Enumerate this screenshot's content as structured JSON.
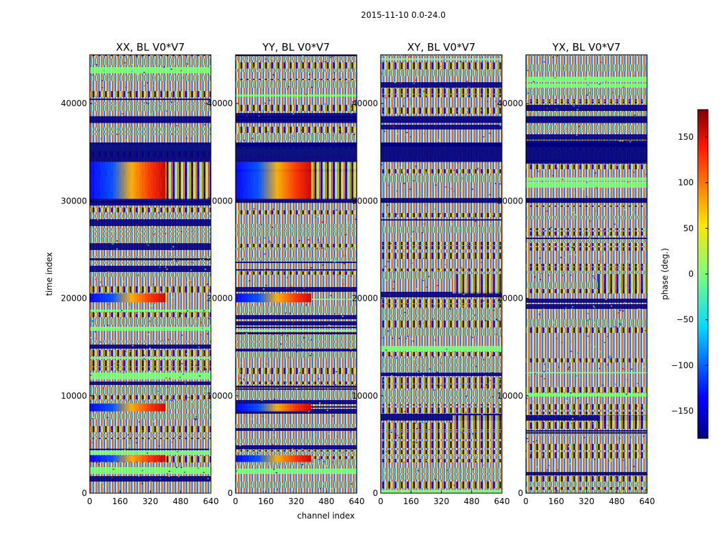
{
  "figure": {
    "suptitle": "2015-11-10 0.0-24.0"
  },
  "chart_data": {
    "type": "heatmap",
    "colormap": "jet",
    "xlabel": "channel index",
    "ylabel": "time index",
    "xlim": [
      0,
      640
    ],
    "ylim": [
      0,
      45000
    ],
    "xticks": [
      "0",
      "160",
      "320",
      "480",
      "640"
    ],
    "yticks": [
      "0",
      "10000",
      "20000",
      "30000",
      "40000"
    ],
    "xtick_values": [
      0,
      160,
      320,
      480,
      640
    ],
    "ytick_values": [
      0,
      10000,
      20000,
      30000,
      40000
    ],
    "panels": [
      {
        "title": "XX, BL V0*V7",
        "gradient": true,
        "grad_end": 400,
        "fringe_from": 400
      },
      {
        "title": "YY, BL V0*V7",
        "gradient": true,
        "grad_end": 400,
        "fringe_from": 400
      },
      {
        "title": "XY, BL V0*V7",
        "gradient": false,
        "grad_end": 0,
        "fringe_from": 380
      },
      {
        "title": "YX, BL V0*V7",
        "gradient": false,
        "grad_end": 0,
        "fringe_from": 380
      }
    ],
    "colorbar": {
      "label": "phase (deg.)",
      "range": [
        -180,
        180
      ],
      "ticks": [
        "150",
        "100",
        "50",
        "0",
        "−50",
        "−100",
        "−150"
      ],
      "tick_values": [
        150,
        100,
        50,
        0,
        -50,
        -100,
        -150
      ]
    }
  }
}
